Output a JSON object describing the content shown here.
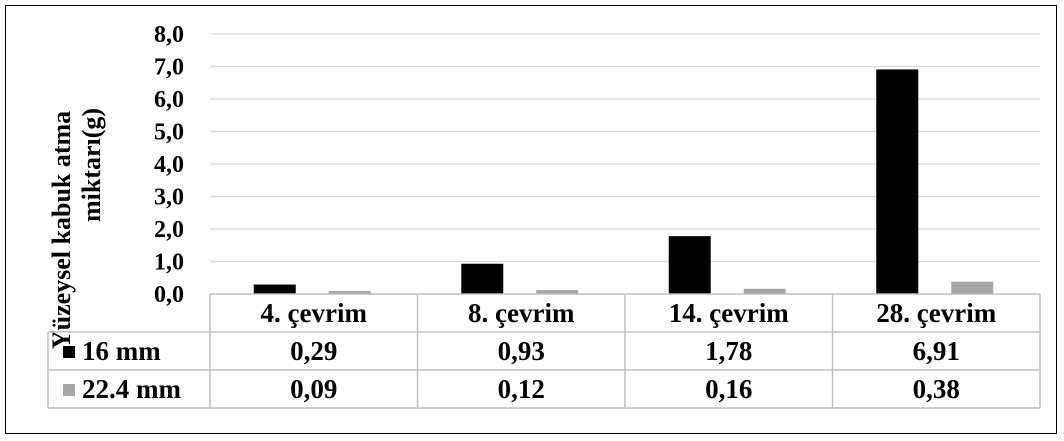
{
  "chart_data": {
    "type": "bar",
    "title": "",
    "ylabel_lines": [
      "Yüzeysel kabuk atma",
      "miktarı(g)"
    ],
    "xlabel": "",
    "categories": [
      "4. çevrim",
      "8. çevrim",
      "14. çevrim",
      "28. çevrim"
    ],
    "series": [
      {
        "name": "16 mm",
        "values": [
          0.29,
          0.93,
          1.78,
          6.91
        ],
        "labels": [
          "0,29",
          "0,93",
          "1,78",
          "6,91"
        ],
        "color": "#000000"
      },
      {
        "name": "22.4 mm",
        "values": [
          0.09,
          0.12,
          0.16,
          0.38
        ],
        "labels": [
          "0,09",
          "0,12",
          "0,16",
          "0,38"
        ],
        "color": "#a6a6a6"
      }
    ],
    "ylim": [
      0,
      8
    ],
    "yticks": [
      0,
      1,
      2,
      3,
      4,
      5,
      6,
      7,
      8
    ],
    "ytick_labels": [
      "0,0",
      "1,0",
      "2,0",
      "3,0",
      "4,0",
      "5,0",
      "6,0",
      "7,0",
      "8,0"
    ],
    "grid": true,
    "legend": "data-table",
    "gridline_color": "#d9d9d9",
    "table_border_color": "#bfbfbf"
  }
}
